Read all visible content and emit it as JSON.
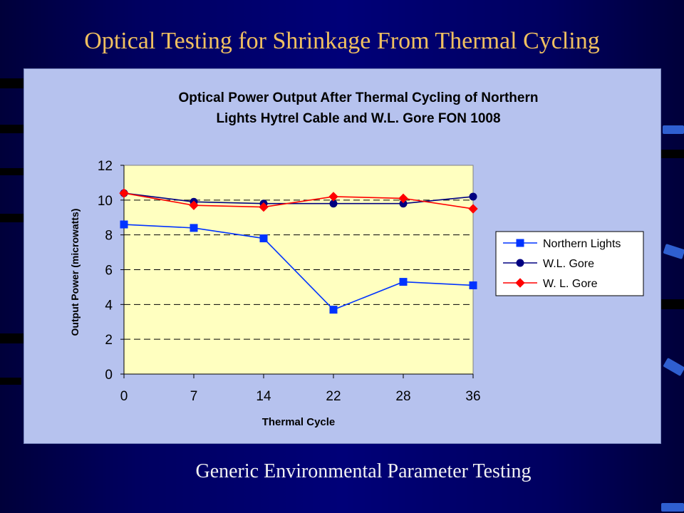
{
  "slide": {
    "title": "Optical Testing for Shrinkage From Thermal Cycling",
    "footer": "Generic Environmental Parameter Testing"
  },
  "colors": {
    "background": "#000066",
    "title": "#f0c060",
    "panel": "#b6c2ee",
    "plot_area": "#ffffc0",
    "northern_lights": "#0033ff",
    "wl_gore": "#000080",
    "wl_gore_2": "#ff0000"
  },
  "chart_data": {
    "type": "line",
    "title": "Optical Power Output After Thermal Cycling of Northern Lights Hytrel Cable and W.L. Gore FON 1008",
    "title_lines": [
      "Optical Power Output After Thermal Cycling of Northern",
      "Lights Hytrel Cable and W.L. Gore FON 1008"
    ],
    "xlabel": "Thermal Cycle",
    "ylabel": "Output Power (microwatts)",
    "categories": [
      "0",
      "7",
      "14",
      "22",
      "28",
      "36"
    ],
    "y_ticks": [
      "0",
      "2",
      "4",
      "6",
      "8",
      "10",
      "12"
    ],
    "ylim": [
      0,
      12
    ],
    "grid": "horizontal dashed",
    "legend_position": "right",
    "series": [
      {
        "name": "Northern Lights",
        "marker": "square",
        "color": "#0033ff",
        "values": [
          8.6,
          8.4,
          7.8,
          3.7,
          5.3,
          5.1
        ]
      },
      {
        "name": "W.L. Gore",
        "marker": "circle",
        "color": "#000080",
        "values": [
          10.4,
          9.9,
          9.8,
          9.8,
          9.8,
          10.2
        ]
      },
      {
        "name": "W. L. Gore",
        "marker": "diamond",
        "color": "#ff0000",
        "values": [
          10.4,
          9.7,
          9.6,
          10.2,
          10.1,
          9.5
        ]
      }
    ]
  }
}
